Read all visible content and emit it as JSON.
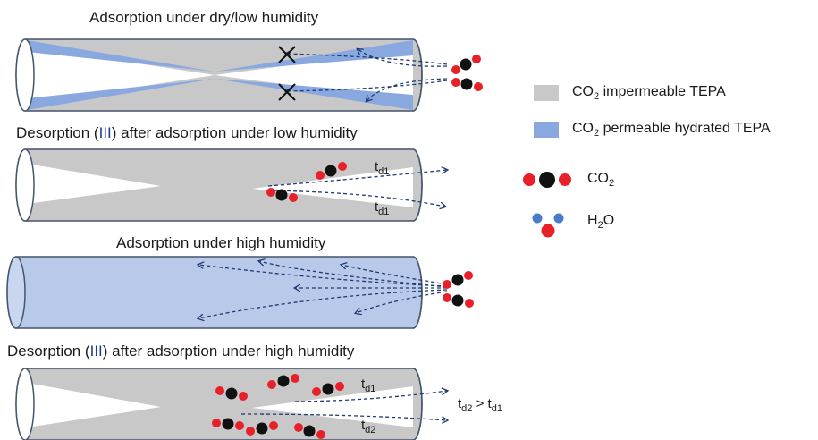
{
  "titles": {
    "dry_pre": "Adsorption under dry/low humidity",
    "desorp_low_pre": "Desorption (",
    "desorp_low_roman": "III",
    "desorp_low_post": ") after adsorption under low humidity",
    "high_pre": "Adsorption under high humidity",
    "desorp_high_pre": "Desorption (",
    "desorp_high_roman": "III",
    "desorp_high_post": ") after adsorption under high humidity"
  },
  "labels": {
    "t": "t",
    "d1": "d1",
    "d2": "d2",
    "gt": " > "
  },
  "legend": {
    "impermeable_pre": "CO",
    "impermeable_sub": "2",
    "impermeable_post": " impermeable TEPA",
    "permeable_pre": "CO",
    "permeable_sub": "2",
    "permeable_post": " permeable hydrated TEPA",
    "co2_pre": "CO",
    "co2_sub": "2",
    "h2o_pre": "H",
    "h2o_sub": "2",
    "h2o_post": "O"
  },
  "colors": {
    "impermeable": "#c8c8c8",
    "permeable": "#8aa8e0",
    "hydrated_fill": "#b9c9ea",
    "oxygen": "#e8202a",
    "carbon": "#111111",
    "hydrogen": "#4a7bc8",
    "arrow": "#1f3a6e",
    "roman": "#1f3a93"
  }
}
